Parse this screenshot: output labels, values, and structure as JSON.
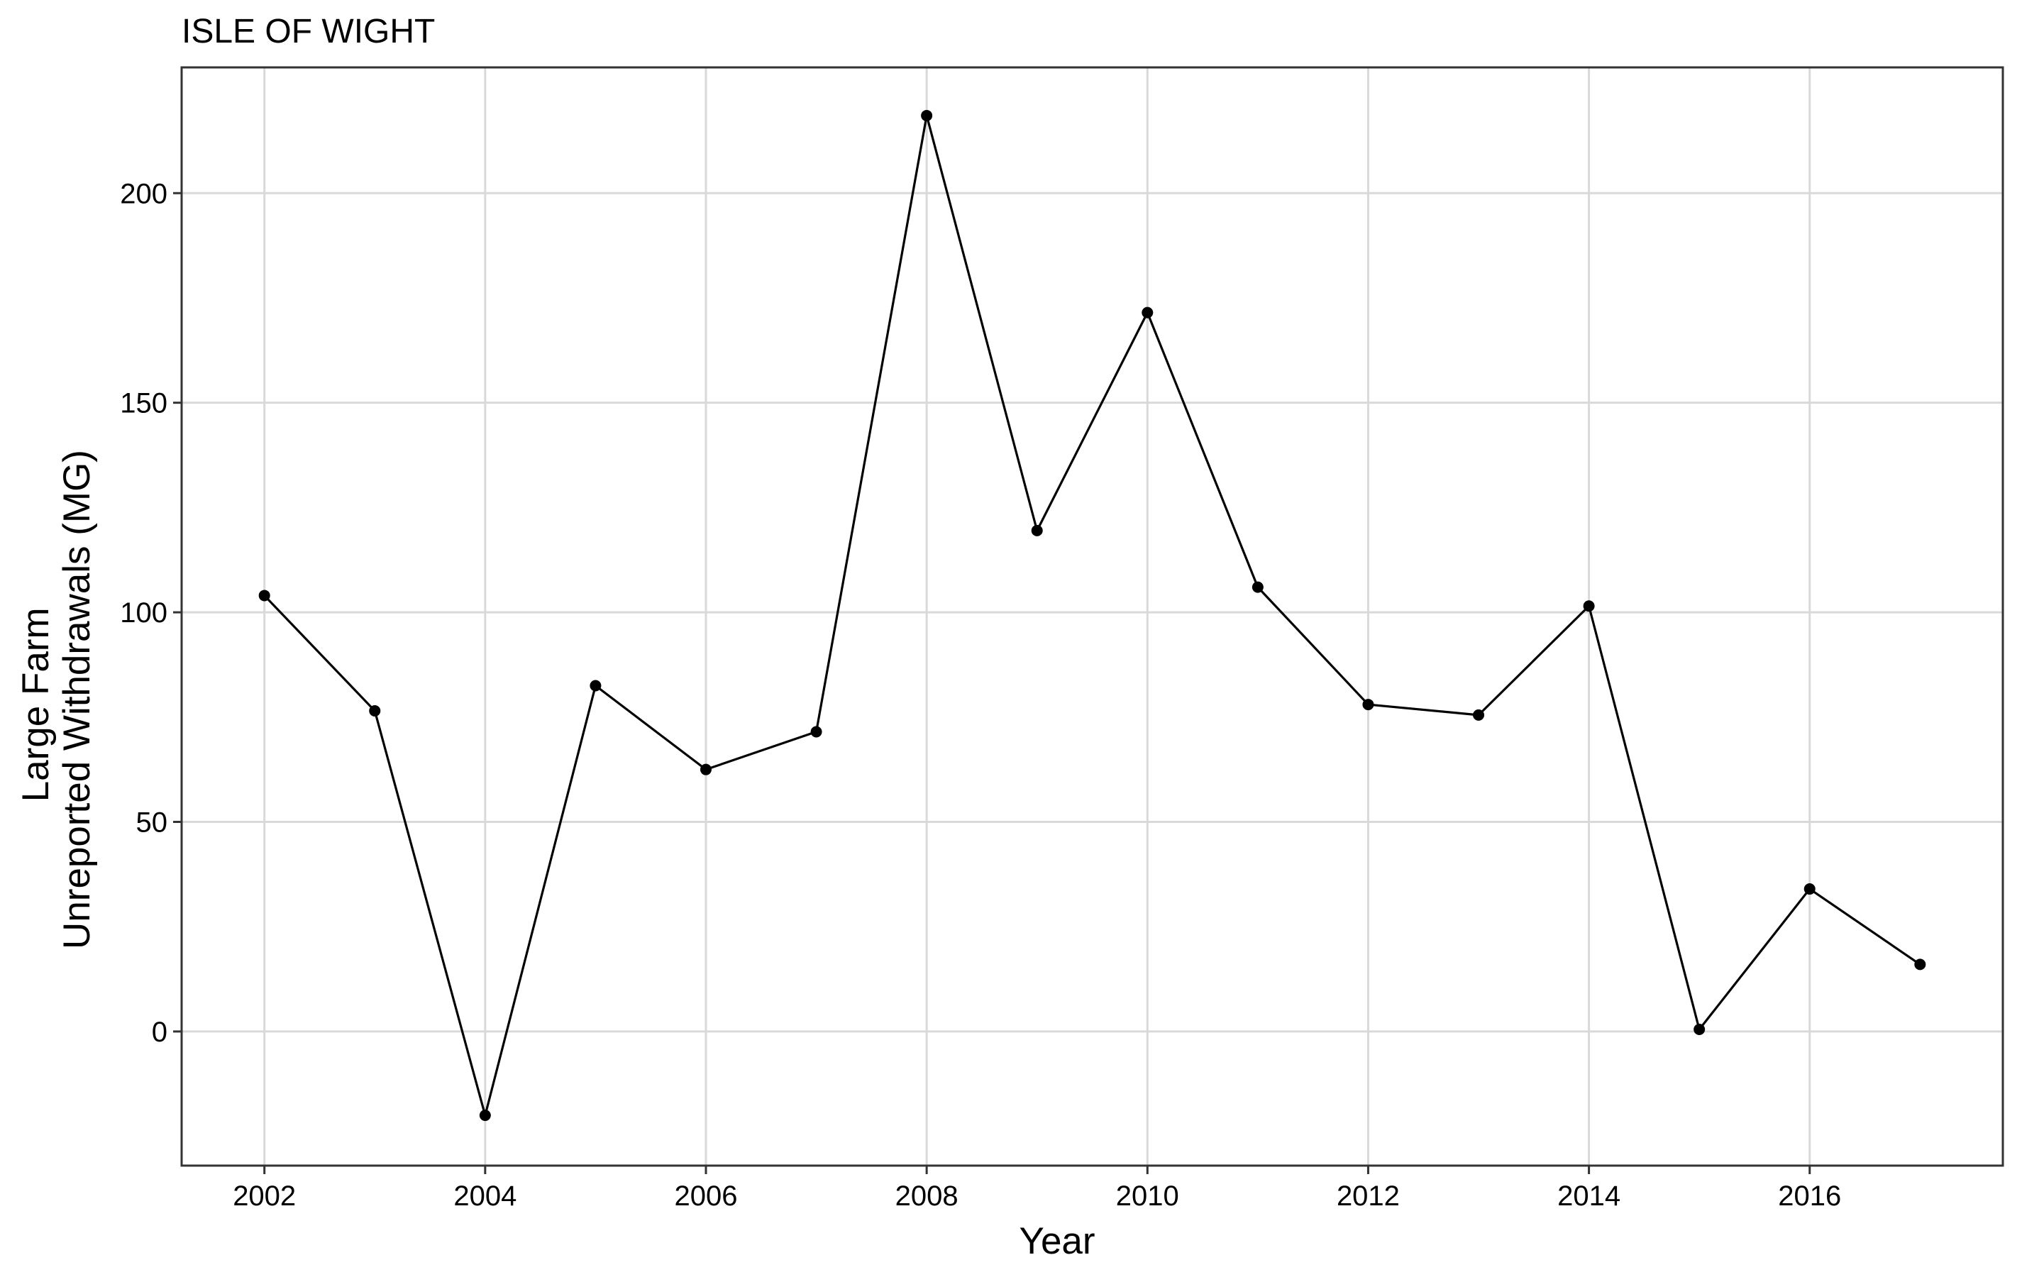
{
  "chart_data": {
    "type": "line",
    "title": "ISLE OF WIGHT",
    "xlabel": "Year",
    "ylabel_lines": [
      "Large Farm",
      "Unreported Withdrawals (MG)"
    ],
    "x": [
      2002,
      2003,
      2004,
      2005,
      2006,
      2007,
      2008,
      2009,
      2010,
      2011,
      2012,
      2013,
      2014,
      2015,
      2016,
      2017
    ],
    "series": [
      {
        "values": [
          104,
          76.5,
          -20,
          82.5,
          62.5,
          71.5,
          218.5,
          119.5,
          171.5,
          106,
          78,
          75.5,
          101.5,
          0.5,
          34,
          16
        ]
      }
    ],
    "xlim": [
      2001.25,
      2017.75
    ],
    "ylim": [
      -32,
      230
    ],
    "x_ticks": [
      2002,
      2004,
      2006,
      2008,
      2010,
      2012,
      2014,
      2016
    ],
    "y_ticks": [
      0,
      50,
      100,
      150,
      200
    ],
    "grid": true,
    "legend": "none",
    "colors": {
      "line": "#000000",
      "point": "#000000",
      "grid": "#d9d9d9",
      "panel_border": "#333333",
      "background": "#ffffff"
    }
  }
}
